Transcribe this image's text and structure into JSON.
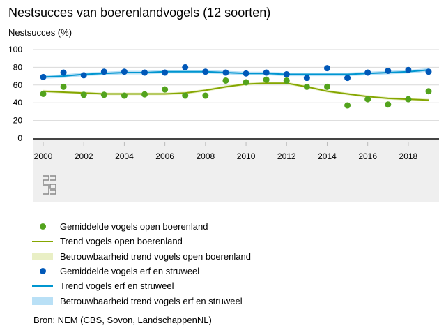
{
  "chart_data": {
    "type": "line",
    "title": "Nestsucces van boerenlandvogels (12 soorten)",
    "ylabel": "Nestsucces (%)",
    "xlabel": "",
    "ylim": [
      0,
      100
    ],
    "yticks": [
      0,
      20,
      40,
      60,
      80,
      100
    ],
    "xticks": [
      2000,
      2002,
      2004,
      2006,
      2008,
      2010,
      2012,
      2014,
      2016,
      2018
    ],
    "x": [
      2000,
      2001,
      2002,
      2003,
      2004,
      2005,
      2006,
      2007,
      2008,
      2009,
      2010,
      2011,
      2012,
      2013,
      2014,
      2015,
      2016,
      2017,
      2018,
      2019
    ],
    "series": [
      {
        "name": "Gemiddelde vogels open boerenland",
        "kind": "points",
        "color": "#53a31d",
        "values": [
          50,
          58,
          49,
          49,
          48,
          49.5,
          55,
          48,
          48,
          65,
          63,
          66,
          65,
          58,
          58,
          37,
          44,
          38,
          44,
          53
        ]
      },
      {
        "name": "Trend vogels open boerenland",
        "kind": "line",
        "color": "#85a600",
        "values": [
          53,
          52,
          51,
          50,
          50,
          50,
          50,
          51,
          54,
          58,
          61,
          62,
          62,
          58,
          53,
          50,
          47,
          45,
          44,
          43
        ]
      },
      {
        "name": "Betrouwbaarheid trend vogels open boerenland",
        "kind": "band",
        "color": "#e9efc5",
        "halfwidth": 1.5
      },
      {
        "name": "Gemiddelde vogels erf en struweel",
        "kind": "points",
        "color": "#0058b8",
        "values": [
          69,
          74,
          71,
          75,
          75,
          74,
          74,
          80,
          75,
          74,
          73,
          74,
          72,
          68,
          79,
          68,
          74,
          76,
          77,
          75
        ]
      },
      {
        "name": "Trend vogels erf en struweel",
        "kind": "line",
        "color": "#0096d0",
        "values": [
          69,
          70,
          72,
          73,
          74,
          74,
          75,
          75,
          75,
          74,
          73,
          73,
          72,
          72,
          72,
          72,
          73,
          74,
          75,
          77
        ]
      },
      {
        "name": "Betrouwbaarheid trend vogels erf en struweel",
        "kind": "band",
        "color": "#b9e0f6",
        "halfwidth": 2
      }
    ],
    "grid": true,
    "legend_position": "bottom"
  },
  "source": "Bron: NEM (CBS, Sovon, LandschappenNL)",
  "logo": "cbs"
}
